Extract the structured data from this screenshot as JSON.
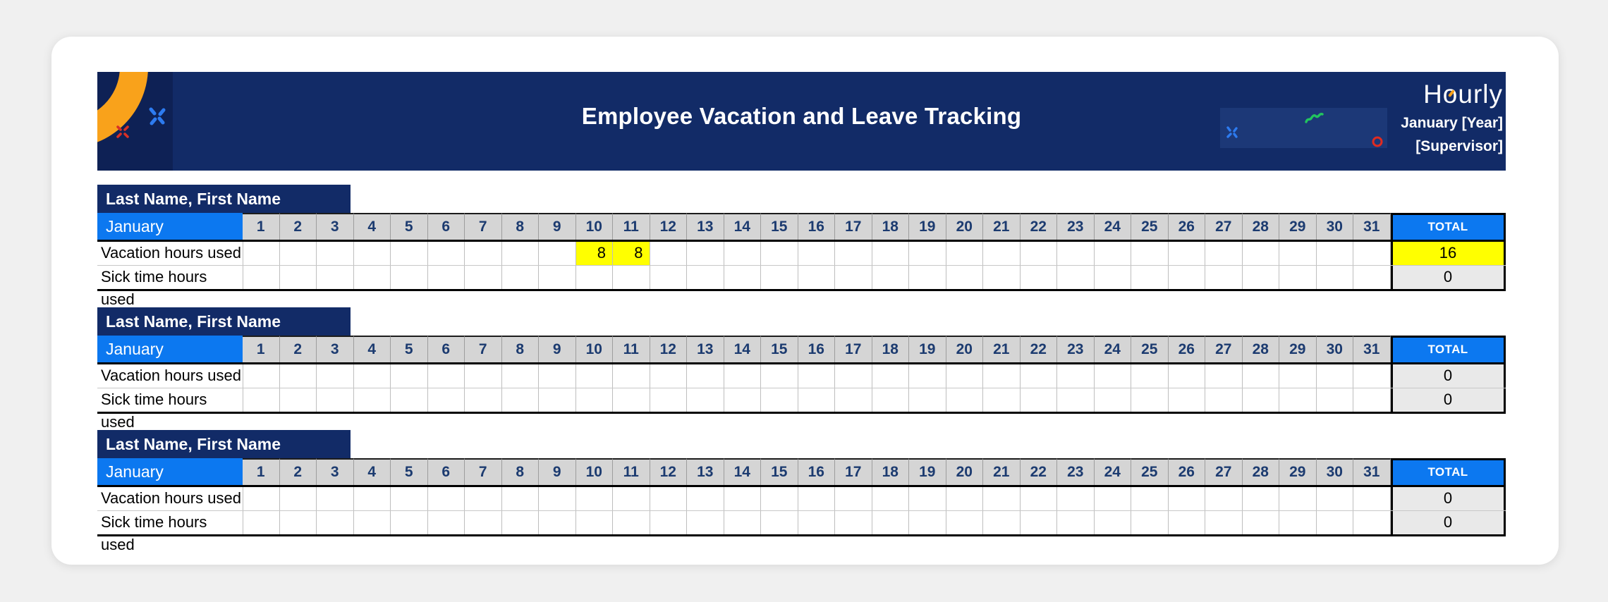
{
  "banner": {
    "title": "Employee Vacation and Leave Tracking",
    "brand": "Hourly",
    "period": "January [Year]",
    "supervisor": "[Supervisor]"
  },
  "calendar": {
    "month": "January",
    "days": [
      "1",
      "2",
      "3",
      "4",
      "5",
      "6",
      "7",
      "8",
      "9",
      "10",
      "11",
      "12",
      "13",
      "14",
      "15",
      "16",
      "17",
      "18",
      "19",
      "20",
      "21",
      "22",
      "23",
      "24",
      "25",
      "26",
      "27",
      "28",
      "29",
      "30",
      "31"
    ],
    "total_label": "TOTAL",
    "vacation_label": "Vacation hours used",
    "sick_label": "Sick time hours used"
  },
  "employees": [
    {
      "name": "Last Name, First Name",
      "vacation": {
        "values": {
          "10": "8",
          "11": "8"
        },
        "total": "16"
      },
      "sick": {
        "values": {},
        "total": "0"
      }
    },
    {
      "name": "Last Name, First Name",
      "vacation": {
        "values": {},
        "total": "0"
      },
      "sick": {
        "values": {},
        "total": "0"
      }
    },
    {
      "name": "Last Name, First Name",
      "vacation": {
        "values": {},
        "total": "0"
      },
      "sick": {
        "values": {},
        "total": "0"
      }
    }
  ],
  "colors": {
    "banner_navy": "#122B67",
    "header_blue": "#0C78F0",
    "day_header_gray": "#D5D5D5",
    "highlight_yellow": "#FFFF00",
    "total_gray": "#E9E9E9",
    "accent_orange": "#F9A21B"
  }
}
